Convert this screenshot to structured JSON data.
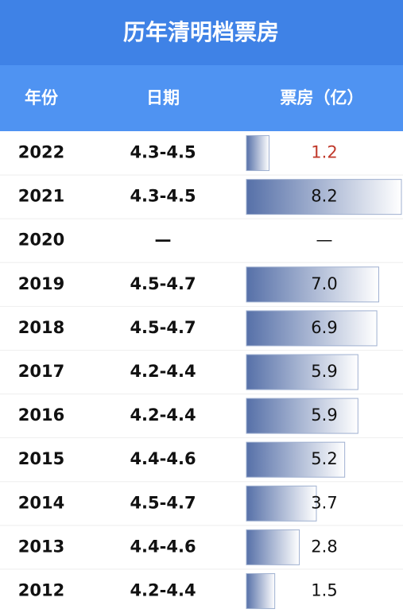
{
  "chart_data": {
    "type": "bar",
    "title": "历年清明档票房",
    "columns": [
      "年份",
      "日期",
      "票房（亿）"
    ],
    "categories": [
      "2022",
      "2021",
      "2020",
      "2019",
      "2018",
      "2017",
      "2016",
      "2015",
      "2014",
      "2013",
      "2012"
    ],
    "dates": [
      "4.3-4.5",
      "4.3-4.5",
      "—",
      "4.5-4.7",
      "4.5-4.7",
      "4.2-4.4",
      "4.2-4.4",
      "4.4-4.6",
      "4.5-4.7",
      "4.4-4.6",
      "4.2-4.4"
    ],
    "values": [
      1.2,
      8.2,
      null,
      7.0,
      6.9,
      5.9,
      5.9,
      5.2,
      3.7,
      2.8,
      1.5
    ],
    "value_labels": [
      "1.2",
      "8.2",
      "—",
      "7.0",
      "6.9",
      "5.9",
      "5.9",
      "5.2",
      "3.7",
      "2.8",
      "1.5"
    ],
    "color": "#5670a8"
  }
}
